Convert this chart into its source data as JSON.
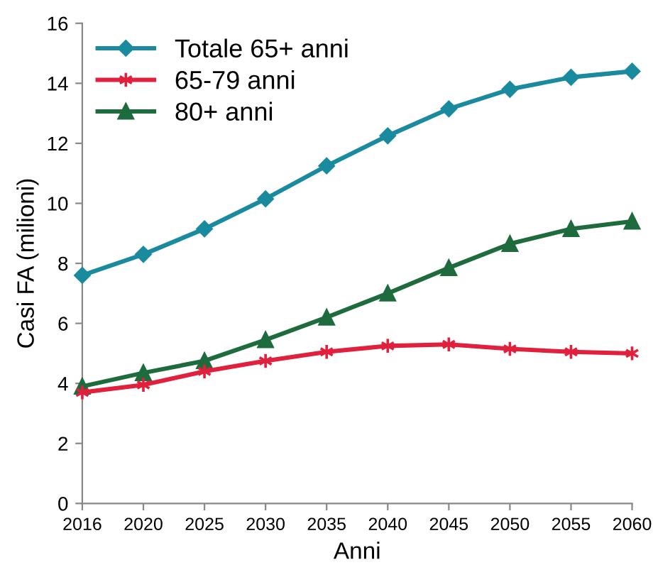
{
  "chart_data": {
    "type": "line",
    "xlabel": "Anni",
    "ylabel": "Casi FA (milioni)",
    "categories": [
      "2016",
      "2020",
      "2025",
      "2030",
      "2035",
      "2040",
      "2045",
      "2050",
      "2055",
      "2060"
    ],
    "series": [
      {
        "name": "Totale 65+ anni",
        "color": "#1a8a9e",
        "marker": "diamond",
        "values": [
          7.6,
          8.3,
          9.15,
          10.15,
          11.25,
          12.25,
          13.15,
          13.8,
          14.2,
          14.4
        ]
      },
      {
        "name": "65-79 anni",
        "color": "#e0203c",
        "marker": "cross",
        "values": [
          3.7,
          3.95,
          4.4,
          4.75,
          5.05,
          5.25,
          5.3,
          5.15,
          5.05,
          5.0
        ]
      },
      {
        "name": "80+ anni",
        "color": "#1e6b3e",
        "marker": "triangle",
        "values": [
          3.9,
          4.35,
          4.75,
          5.45,
          6.2,
          7.0,
          7.85,
          8.65,
          9.15,
          9.4
        ]
      }
    ],
    "ylim": [
      0,
      16
    ],
    "yticks": [
      0,
      2,
      4,
      6,
      8,
      10,
      12,
      14,
      16
    ],
    "legend": "top left",
    "grid": false,
    "line_style": "solid"
  }
}
